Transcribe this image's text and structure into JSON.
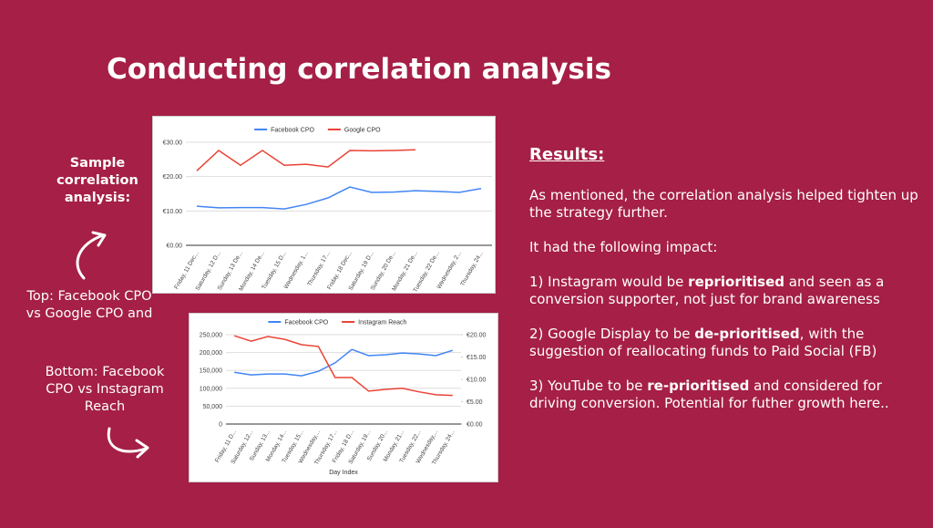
{
  "title": "Conducting correlation analysis",
  "left_notes": {
    "sample": "Sample correlation analysis:",
    "top": "Top: Facebook CPO vs Google CPO and",
    "bottom": "Bottom: Facebook CPO vs Instagram Reach"
  },
  "results": {
    "heading": "Results:",
    "intro": "As mentioned, the correlation analysis helped tighten up the strategy further.",
    "impact": "It had the following impact:",
    "points": [
      {
        "prefix": "1) Instagram would be ",
        "emphasis": "reprioritised",
        "suffix": " and seen as a conversion supporter, not just for brand awareness"
      },
      {
        "prefix": "2) Google Display to be ",
        "emphasis": "de-prioritised",
        "suffix": ", with the suggestion of reallocating funds to Paid Social (FB)"
      },
      {
        "prefix": "3) YouTube to be ",
        "emphasis": "re-prioritised",
        "suffix": " and considered for driving conversion. Potential for futher growth here.."
      }
    ]
  },
  "chart_data": [
    {
      "type": "line",
      "categories": [
        "Friday, 11 Dec...",
        "Saturday, 12 D...",
        "Sunday, 13 De...",
        "Monday, 14 De...",
        "Tuesday, 15 D...",
        "Wednesday, 1...",
        "Thursday, 17...",
        "Friday, 18 Dec...",
        "Saturday, 19 D...",
        "Sunday, 20 De...",
        "Monday, 21 De...",
        "Tuesday, 22 De...",
        "Wednesday, 2...",
        "Thursday, 24..."
      ],
      "series": [
        {
          "name": "Facebook CPO",
          "color": "#4285f4",
          "values": [
            11.4,
            10.9,
            11.0,
            11.0,
            10.6,
            11.9,
            13.8,
            17.0,
            15.4,
            15.5,
            15.9,
            15.7,
            15.4,
            16.5
          ]
        },
        {
          "name": "Google CPO",
          "color": "#ea4335",
          "values": [
            21.7,
            27.6,
            23.3,
            27.6,
            23.3,
            23.6,
            22.8,
            27.6,
            27.5,
            27.6,
            27.8,
            null,
            null,
            null
          ]
        }
      ],
      "ylim": [
        0,
        30
      ],
      "yticks": [
        {
          "value": 0,
          "label": "€0.00"
        },
        {
          "value": 10,
          "label": "€10.00"
        },
        {
          "value": 20,
          "label": "€20.00"
        },
        {
          "value": 30,
          "label": "€30.00"
        }
      ],
      "grid": true,
      "legend": "top"
    },
    {
      "type": "line",
      "x_label": "Day Index",
      "categories": [
        "Friday, 11 D...",
        "Saturday, 12...",
        "Sunday, 13...",
        "Monday, 14...",
        "Tuesday, 15...",
        "Wednesday,...",
        "Thursday, 17...",
        "Friday, 18 D...",
        "Saturday, 19...",
        "Sunday, 20...",
        "Monday, 21...",
        "Tuesday, 22...",
        "Wednesday,...",
        "Thursday, 24..."
      ],
      "series": [
        {
          "name": "Facebook CPO",
          "color": "#4285f4",
          "axis": "y2",
          "values": [
            11.6,
            11.0,
            11.2,
            11.2,
            10.8,
            11.8,
            13.7,
            16.7,
            15.3,
            15.5,
            15.9,
            15.7,
            15.3,
            16.5
          ]
        },
        {
          "name": "Instagram Reach",
          "color": "#ea4335",
          "values": [
            247000,
            232000,
            245000,
            237000,
            222000,
            217000,
            130000,
            130000,
            92000,
            97000,
            100000,
            90000,
            82000,
            80000
          ]
        }
      ],
      "ylim": [
        0,
        250000
      ],
      "yticks": [
        0,
        {
          "value": 50000,
          "label": "50,000"
        },
        {
          "value": 100000,
          "label": "100,000"
        },
        {
          "value": 150000,
          "label": "150,000"
        },
        {
          "value": 200000,
          "label": "200,000"
        },
        {
          "value": 250000,
          "label": "250,000"
        }
      ],
      "y2lim": [
        0,
        20
      ],
      "y2ticks": [
        {
          "value": 0,
          "label": "€0.00"
        },
        {
          "value": 5,
          "label": "€5.00"
        },
        {
          "value": 10,
          "label": "€10.00"
        },
        {
          "value": 15,
          "label": "€15.00"
        },
        {
          "value": 20,
          "label": "€20.00"
        }
      ],
      "grid": true,
      "legend": "top"
    }
  ]
}
